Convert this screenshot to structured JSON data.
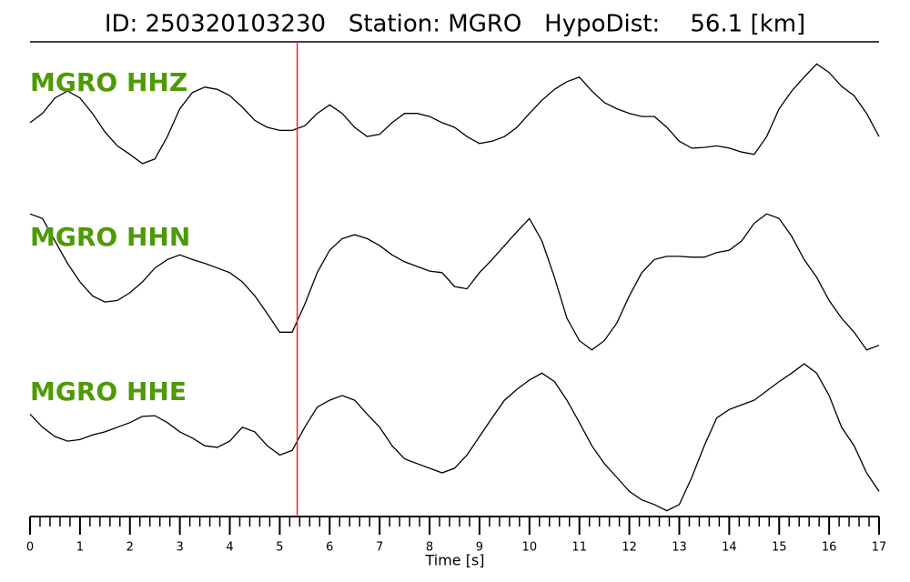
{
  "chart_data": {
    "type": "line",
    "title": "ID: 250320103230   Station: MGRO   HypoDist:    56.1 [km]",
    "xlabel": "Time [s]",
    "xlim": [
      0,
      17
    ],
    "xticks": [
      0,
      1,
      2,
      3,
      4,
      5,
      6,
      7,
      8,
      9,
      10,
      11,
      12,
      13,
      14,
      15,
      16,
      17
    ],
    "xminorticks": [
      0.2,
      0.4,
      0.6,
      0.8,
      1.2,
      1.4,
      1.6,
      1.8,
      2.2,
      2.4,
      2.6,
      2.8,
      3.2,
      3.4,
      3.6,
      3.8,
      4.2,
      4.4,
      4.6,
      4.8,
      5.2,
      5.4,
      5.6,
      5.8,
      6.2,
      6.4,
      6.6,
      6.8,
      7.2,
      7.4,
      7.6,
      7.8,
      8.2,
      8.4,
      8.6,
      8.8,
      9.2,
      9.4,
      9.6,
      9.8,
      10.2,
      10.4,
      10.6,
      10.8,
      11.2,
      11.4,
      11.6,
      11.8,
      12.2,
      12.4,
      12.6,
      12.8,
      13.2,
      13.4,
      13.6,
      13.8,
      14.2,
      14.4,
      14.6,
      14.8,
      15.2,
      15.4,
      15.6,
      15.8,
      16.2,
      16.4,
      16.6,
      16.8
    ],
    "ylim": [
      -1,
      1
    ],
    "marker_x": 5.35,
    "marker_color": "#e8282b",
    "label_color": "#4e9a06",
    "x": [
      0,
      0.25,
      0.5,
      0.75,
      1,
      1.25,
      1.5,
      1.75,
      2,
      2.25,
      2.5,
      2.75,
      3,
      3.25,
      3.5,
      3.75,
      4,
      4.25,
      4.5,
      4.75,
      5,
      5.25,
      5.5,
      5.75,
      6,
      6.25,
      6.5,
      6.75,
      7,
      7.25,
      7.5,
      7.75,
      8,
      8.25,
      8.5,
      8.75,
      9,
      9.25,
      9.5,
      9.75,
      10,
      10.25,
      10.5,
      10.75,
      11,
      11.25,
      11.5,
      11.75,
      12,
      12.25,
      12.5,
      12.75,
      13,
      13.25,
      13.5,
      13.75,
      14,
      14.25,
      14.5,
      14.75,
      15,
      15.25,
      15.5,
      15.75,
      16,
      16.25,
      16.5,
      16.75,
      17
    ],
    "series": [
      {
        "name": "MGRO HHZ",
        "color": "#000000",
        "values": [
          0.06,
          0.18,
          0.38,
          0.47,
          0.38,
          0.18,
          -0.06,
          -0.24,
          -0.35,
          -0.47,
          -0.41,
          -0.12,
          0.24,
          0.45,
          0.52,
          0.49,
          0.41,
          0.26,
          0.09,
          0,
          -0.04,
          -0.04,
          0.02,
          0.18,
          0.29,
          0.18,
          0,
          -0.12,
          -0.09,
          0.06,
          0.18,
          0.18,
          0.14,
          0.06,
          0,
          -0.12,
          -0.21,
          -0.18,
          -0.12,
          0,
          0.18,
          0.35,
          0.49,
          0.59,
          0.65,
          0.47,
          0.32,
          0.24,
          0.18,
          0.14,
          0.14,
          0,
          -0.18,
          -0.27,
          -0.26,
          -0.24,
          -0.27,
          -0.32,
          -0.35,
          -0.12,
          0.24,
          0.47,
          0.65,
          0.82,
          0.71,
          0.53,
          0.41,
          0.18,
          -0.12
        ]
      },
      {
        "name": "MGRO HHN",
        "color": "#000000",
        "values": [
          0.88,
          0.82,
          0.53,
          0.24,
          0,
          -0.18,
          -0.26,
          -0.24,
          -0.14,
          0,
          0.18,
          0.29,
          0.35,
          0.29,
          0.24,
          0.18,
          0.12,
          0,
          -0.18,
          -0.41,
          -0.65,
          -0.65,
          -0.29,
          0.12,
          0.41,
          0.56,
          0.61,
          0.56,
          0.47,
          0.35,
          0.26,
          0.2,
          0.14,
          0.12,
          -0.06,
          -0.09,
          0.12,
          0.29,
          0.47,
          0.65,
          0.82,
          0.53,
          0.06,
          -0.47,
          -0.76,
          -0.88,
          -0.76,
          -0.53,
          -0.18,
          0.12,
          0.29,
          0.33,
          0.33,
          0.32,
          0.32,
          0.38,
          0.41,
          0.53,
          0.76,
          0.88,
          0.82,
          0.59,
          0.29,
          0.06,
          -0.24,
          -0.47,
          -0.65,
          -0.88,
          -0.82
        ]
      },
      {
        "name": "MGRO HHE",
        "color": "#000000",
        "values": [
          0.29,
          0.12,
          0,
          -0.06,
          -0.04,
          0.02,
          0.06,
          0.12,
          0.18,
          0.26,
          0.27,
          0.18,
          0.06,
          -0.02,
          -0.12,
          -0.14,
          -0.06,
          0.12,
          0.06,
          -0.12,
          -0.24,
          -0.18,
          0.12,
          0.38,
          0.47,
          0.53,
          0.47,
          0.29,
          0.12,
          -0.12,
          -0.29,
          -0.35,
          -0.41,
          -0.47,
          -0.41,
          -0.24,
          0,
          0.24,
          0.47,
          0.61,
          0.73,
          0.82,
          0.71,
          0.47,
          0.18,
          -0.12,
          -0.35,
          -0.53,
          -0.71,
          -0.82,
          -0.88,
          -0.96,
          -0.88,
          -0.53,
          -0.12,
          0.24,
          0.35,
          0.41,
          0.47,
          0.59,
          0.71,
          0.82,
          0.94,
          0.82,
          0.53,
          0.12,
          -0.12,
          -0.47,
          -0.71
        ]
      }
    ]
  }
}
